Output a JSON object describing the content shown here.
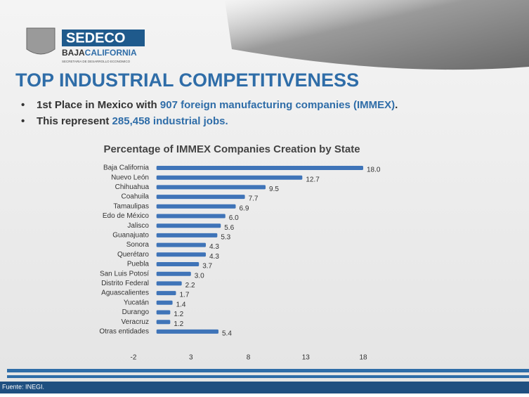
{
  "logo": {
    "name": "SEDECO",
    "state_a": "BAJA",
    "state_b": "CALIFORNIA",
    "subtitle": "SECRETARIA DE DESARROLLO ECONOMICO"
  },
  "title": "TOP INDUSTRIAL COMPETITIVENESS",
  "bullets": [
    {
      "parts": [
        "1st Place in Mexico with ",
        "907 foreign manufacturing companies (IMMEX)",
        "."
      ]
    },
    {
      "parts": [
        "This represent ",
        "285,458 industrial jobs."
      ]
    }
  ],
  "chart_data": {
    "type": "bar",
    "orientation": "horizontal",
    "title": "Percentage of IMMEX Companies Creation by State",
    "categories": [
      "Baja California",
      "Nuevo León",
      "Chihuahua",
      "Coahuila",
      "Tamaulipas",
      "Edo de México",
      "Jalisco",
      "Guanajuato",
      "Sonora",
      "Querétaro",
      "Puebla",
      "San Luis Potosí",
      "Distrito Federal",
      "Aguascalientes",
      "Yucatán",
      "Durango",
      "Veracruz",
      "Otras entidades"
    ],
    "values": [
      18.0,
      12.7,
      9.5,
      7.7,
      6.9,
      6.0,
      5.6,
      5.3,
      4.3,
      4.3,
      3.7,
      3.0,
      2.2,
      1.7,
      1.4,
      1.2,
      1.2,
      5.4
    ],
    "value_labels": [
      "18.0",
      "12.7",
      "9.5",
      "7.7",
      "6.9",
      "6.0",
      "5.6",
      "5.3",
      "4.3",
      "4.3",
      "3.7",
      "3.0",
      "2.2",
      "1.7",
      "1.4",
      "1.2",
      "1.2",
      "5.4"
    ],
    "color": "#3f74b8",
    "xlim": [
      -2,
      18
    ],
    "xticks": [
      -2,
      3,
      8,
      13,
      18
    ]
  },
  "footer": "Fuente: INEGI."
}
